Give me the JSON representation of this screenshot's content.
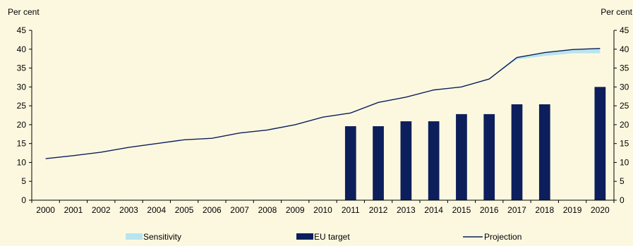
{
  "chart_data": {
    "type": "bar",
    "y_unit_left": "Per cent",
    "y_unit_right": "Per cent",
    "ylim": [
      0,
      45
    ],
    "y_ticks": [
      0,
      5,
      10,
      15,
      20,
      25,
      30,
      35,
      40,
      45
    ],
    "categories": [
      "2000",
      "2001",
      "2002",
      "2003",
      "2004",
      "2005",
      "2006",
      "2007",
      "2008",
      "2009",
      "2010",
      "2011",
      "2012",
      "2013",
      "2014",
      "2015",
      "2016",
      "2017",
      "2018",
      "2019",
      "2020"
    ],
    "grid": false,
    "legend_position": "bottom",
    "series": [
      {
        "name": "EU target",
        "type": "bar",
        "color": "#0c1f5c",
        "values": [
          null,
          null,
          null,
          null,
          null,
          null,
          null,
          null,
          null,
          null,
          null,
          19.6,
          19.6,
          20.9,
          20.9,
          22.8,
          22.8,
          25.4,
          25.4,
          null,
          30.0
        ]
      },
      {
        "name": "Projection",
        "type": "line",
        "color": "#0c1f5c",
        "values": [
          11.0,
          11.8,
          12.7,
          14.0,
          15.0,
          16.0,
          16.4,
          17.8,
          18.6,
          20.0,
          22.0,
          23.1,
          25.9,
          27.3,
          29.2,
          30.0,
          32.1,
          37.8,
          39.1,
          39.9,
          40.2
        ]
      },
      {
        "name": "Sensitivity",
        "type": "area",
        "color": "#b8e4ee",
        "lower": [
          11.0,
          11.8,
          12.7,
          14.0,
          15.0,
          16.0,
          16.4,
          17.8,
          18.6,
          20.0,
          22.0,
          23.1,
          25.9,
          27.3,
          29.2,
          30.0,
          32.1,
          37.3,
          38.2,
          38.9,
          38.9
        ],
        "upper": [
          11.0,
          11.8,
          12.7,
          14.0,
          15.0,
          16.0,
          16.4,
          17.8,
          18.6,
          20.0,
          22.0,
          23.1,
          25.9,
          27.3,
          29.2,
          30.0,
          32.1,
          37.8,
          39.1,
          39.9,
          40.2
        ]
      }
    ],
    "legend": [
      "Sensitivity",
      "EU target",
      "Projection"
    ]
  }
}
